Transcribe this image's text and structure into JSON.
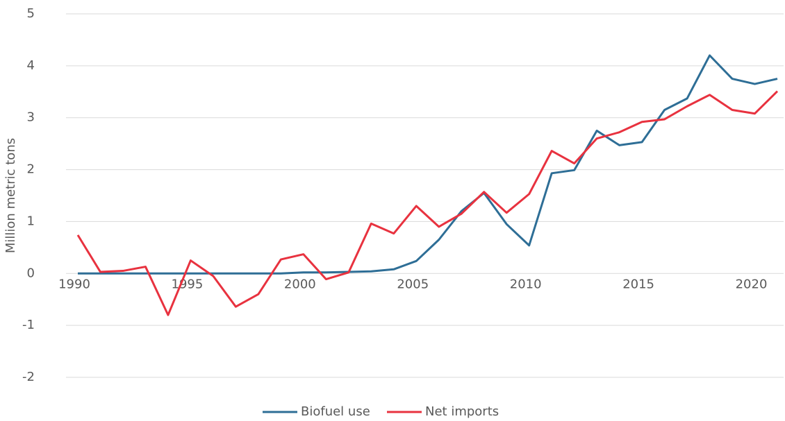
{
  "chart_data": {
    "type": "line",
    "y_label": "Million metric tons",
    "x": [
      1990,
      1991,
      1992,
      1993,
      1994,
      1995,
      1996,
      1997,
      1998,
      1999,
      2000,
      2001,
      2002,
      2003,
      2004,
      2005,
      2006,
      2007,
      2008,
      2009,
      2010,
      2011,
      2012,
      2013,
      2014,
      2015,
      2016,
      2017,
      2018,
      2019,
      2020,
      2021
    ],
    "series": [
      {
        "name": "Biofuel use",
        "color": "#2e6e96",
        "values": [
          0,
          0,
          0,
          0,
          0,
          0,
          0,
          0,
          0,
          0,
          0.02,
          0.02,
          0.03,
          0.04,
          0.08,
          0.24,
          0.65,
          1.2,
          1.55,
          0.95,
          0.54,
          1.93,
          1.99,
          2.75,
          2.47,
          2.53,
          3.15,
          3.37,
          4.2,
          3.75,
          3.65,
          3.75
        ]
      },
      {
        "name": "Net imports",
        "color": "#e8323f",
        "values": [
          0.74,
          0.03,
          0.05,
          0.13,
          -0.8,
          0.25,
          -0.05,
          -0.64,
          -0.4,
          0.27,
          0.37,
          -0.11,
          0.02,
          0.96,
          0.77,
          1.3,
          0.9,
          1.15,
          1.57,
          1.17,
          1.53,
          2.36,
          2.12,
          2.6,
          2.72,
          2.92,
          2.97,
          3.22,
          3.44,
          3.15,
          3.08,
          3.51
        ]
      }
    ],
    "xlim": [
      1990,
      2021
    ],
    "xticks": [
      1990,
      1995,
      2000,
      2005,
      2010,
      2015,
      2020
    ],
    "ylim": [
      -2,
      5
    ],
    "yticks": [
      -2,
      -1,
      0,
      1,
      2,
      3,
      4,
      5
    ],
    "grid": true,
    "legend": "bottom"
  }
}
